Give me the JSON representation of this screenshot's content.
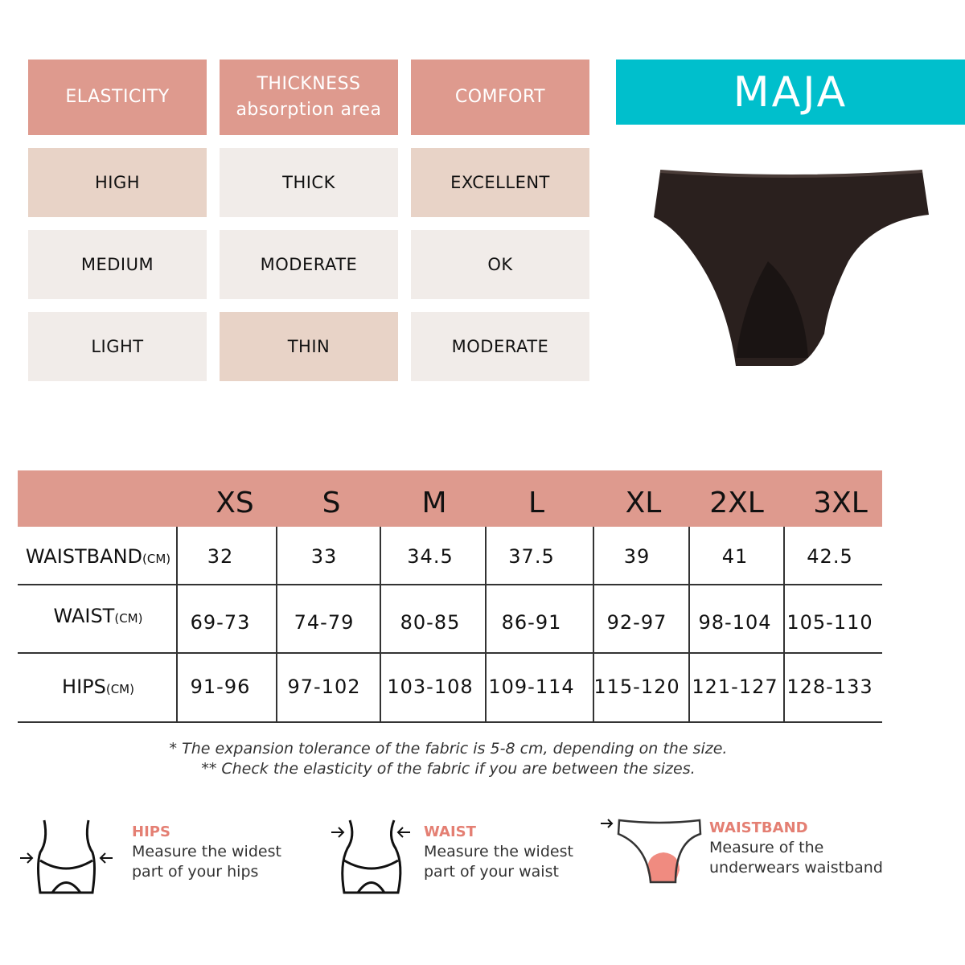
{
  "attributes": {
    "headers": [
      "ELASTICITY",
      "THICKNESS",
      "COMFORT"
    ],
    "thickness_sub": "absorption area",
    "rows": [
      [
        "HIGH",
        "THICK",
        "EXCELLENT"
      ],
      [
        "MEDIUM",
        "MODERATE",
        "OK"
      ],
      [
        "LIGHT",
        "THIN",
        "MODERATE"
      ]
    ]
  },
  "product": {
    "name": "MAJA",
    "image": "black-bikini-brief"
  },
  "size_table": {
    "sizes": [
      "XS",
      "S",
      "M",
      "L",
      "XL",
      "2XL",
      "3XL"
    ],
    "rows": [
      {
        "label": "WAISTBAND",
        "unit": "(CM)",
        "values": [
          "32",
          "33",
          "34.5",
          "37.5",
          "39",
          "41",
          "42.5"
        ]
      },
      {
        "label": "WAIST",
        "unit": "(CM)",
        "values": [
          "69-73",
          "74-79",
          "80-85",
          "86-91",
          "92-97",
          "98-104",
          "105-110"
        ]
      },
      {
        "label": "HIPS",
        "unit": "(CM)",
        "values": [
          "91-96",
          "97-102",
          "103-108",
          "109-114",
          "115-120",
          "121-127",
          "128-133"
        ]
      }
    ]
  },
  "notes": [
    "* The expansion tolerance of the fabric is 5-8 cm, depending on the size.",
    "** Check the elasticity of the fabric if you are between the sizes."
  ],
  "guides": [
    {
      "title": "HIPS",
      "line1": "Measure the widest",
      "line2": "part of your hips"
    },
    {
      "title": "WAIST",
      "line1": "Measure the widest",
      "line2": "part of your waist"
    },
    {
      "title": "WAISTBAND",
      "line1": "Measure of the",
      "line2": "underwears waistband"
    }
  ],
  "colors": {
    "header": "#de9a8e",
    "beige": "#e8d3c7",
    "light": "#f1ece9",
    "brand": "#00bfcc",
    "accent_text": "#e47f73"
  }
}
